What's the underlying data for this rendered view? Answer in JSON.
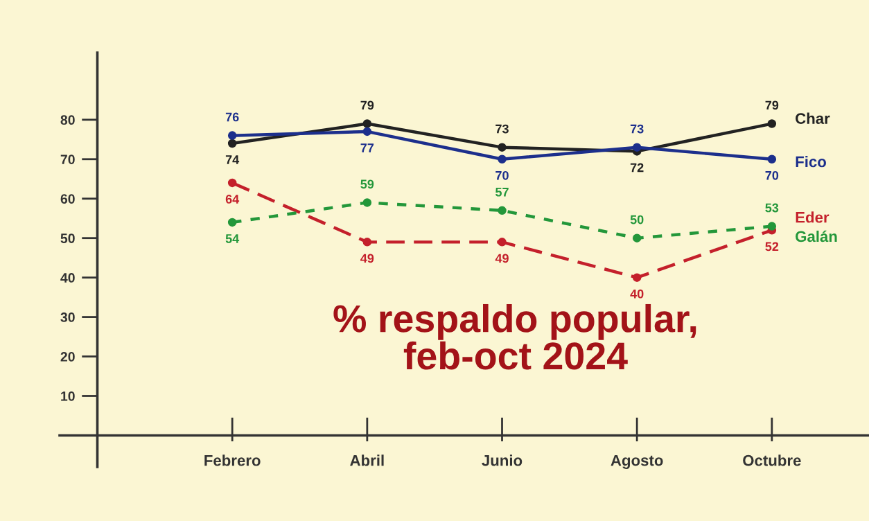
{
  "chart_data": {
    "type": "line",
    "title": "% respaldo popular,\nfeb-oct 2024",
    "categories": [
      "Febrero",
      "Abril",
      "Junio",
      "Agosto",
      "Octubre"
    ],
    "series": [
      {
        "name": "Char",
        "color": "#222222",
        "values": [
          74,
          79,
          73,
          72,
          79
        ],
        "line_style": "solid"
      },
      {
        "name": "Fico",
        "color": "#1c2f8c",
        "values": [
          76,
          77,
          70,
          73,
          70
        ],
        "line_style": "solid"
      },
      {
        "name": "Eder",
        "color": "#c4202b",
        "values": [
          64,
          49,
          49,
          40,
          52
        ],
        "line_style": "dashed"
      },
      {
        "name": "Galán",
        "color": "#23973a",
        "values": [
          54,
          59,
          57,
          50,
          53
        ],
        "line_style": "dotted"
      }
    ],
    "ylim": [
      -8,
      97
    ],
    "yticks": [
      10,
      20,
      30,
      40,
      50,
      60,
      70,
      80
    ],
    "marker": "circle",
    "data_labels": true,
    "grid": false,
    "legend": "right"
  }
}
